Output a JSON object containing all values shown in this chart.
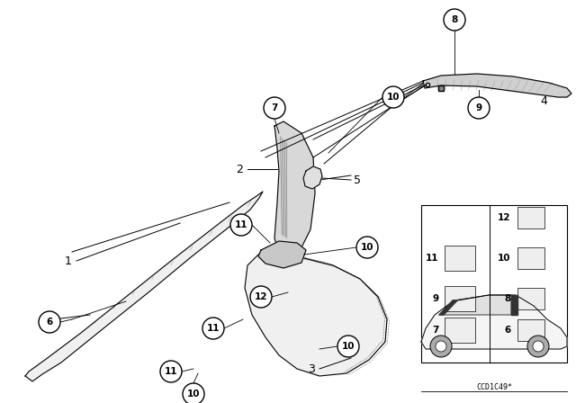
{
  "background_color": "#ffffff",
  "line_color": "#000000",
  "fig_width": 6.4,
  "fig_height": 4.48,
  "dpi": 100,
  "watermark": "CCD1C49*"
}
